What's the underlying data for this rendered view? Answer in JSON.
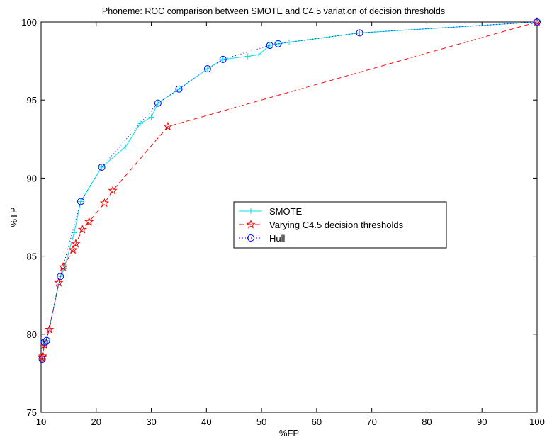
{
  "chart_data": {
    "type": "line",
    "title": "Phoneme: ROC comparison between SMOTE and C4.5 variation of decision thresholds",
    "xlabel": "%FP",
    "ylabel": "%TP",
    "xlim": [
      10,
      100
    ],
    "ylim": [
      75,
      100
    ],
    "xticks": [
      10,
      20,
      30,
      40,
      50,
      60,
      70,
      80,
      90,
      100
    ],
    "yticks": [
      75,
      80,
      85,
      90,
      95,
      100
    ],
    "grid": false,
    "legend_position": "center-right",
    "series": [
      {
        "name": "SMOTE",
        "color": "#00e5e5",
        "line_style": "solid",
        "marker": "plus",
        "x": [
          10.2,
          10.6,
          11.0,
          13.5,
          14.2,
          16.0,
          17.2,
          21.0,
          25.3,
          28.0,
          30.0,
          31.2,
          35.0,
          40.2,
          43.0,
          47.5,
          49.5,
          51.5,
          53.0,
          55.0,
          67.8,
          100
        ],
        "y": [
          78.4,
          79.5,
          79.6,
          83.7,
          84.2,
          86.5,
          88.5,
          90.7,
          92.0,
          93.5,
          93.9,
          94.8,
          95.7,
          97.0,
          97.6,
          97.8,
          97.9,
          98.5,
          98.6,
          98.7,
          99.3,
          100
        ]
      },
      {
        "name": "Varying C4.5 decision thresholds",
        "color": "#ff0000",
        "line_style": "dashed",
        "marker": "star",
        "x": [
          10.2,
          10.3,
          10.6,
          11.5,
          13.2,
          14.0,
          15.8,
          16.3,
          17.5,
          18.7,
          21.5,
          23.0,
          33.0,
          100
        ],
        "y": [
          78.5,
          78.6,
          79.3,
          80.3,
          83.3,
          84.3,
          85.4,
          85.8,
          86.7,
          87.2,
          88.4,
          89.2,
          93.3,
          100
        ]
      },
      {
        "name": "Hull",
        "color": "#0000ff",
        "line_style": "dotted",
        "marker": "circle",
        "x": [
          10.2,
          10.6,
          11.0,
          13.5,
          17.2,
          21.0,
          31.2,
          35.0,
          40.2,
          43.0,
          51.5,
          53.0,
          67.8,
          100
        ],
        "y": [
          78.4,
          79.5,
          79.6,
          83.7,
          88.5,
          90.7,
          94.8,
          95.7,
          97.0,
          97.6,
          98.5,
          98.6,
          99.3,
          100
        ]
      }
    ]
  }
}
